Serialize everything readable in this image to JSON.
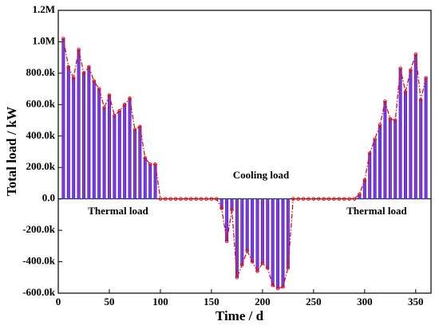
{
  "chart_data": {
    "type": "bar_line",
    "x_label": "Time / d",
    "y_label": "Total load / kW",
    "annotations": [
      "Cooling load",
      "Thermal load",
      "Thermal load"
    ],
    "x": [
      5,
      10,
      15,
      20,
      25,
      30,
      35,
      40,
      45,
      50,
      55,
      60,
      65,
      70,
      75,
      80,
      85,
      90,
      95,
      100,
      105,
      110,
      115,
      120,
      125,
      130,
      135,
      140,
      145,
      150,
      155,
      160,
      165,
      170,
      175,
      180,
      185,
      190,
      195,
      200,
      205,
      210,
      215,
      220,
      225,
      230,
      235,
      240,
      245,
      250,
      255,
      260,
      265,
      270,
      275,
      280,
      285,
      290,
      295,
      300,
      305,
      310,
      315,
      320,
      325,
      330,
      335,
      340,
      345,
      350,
      355,
      360
    ],
    "values": [
      1020000,
      840000,
      770000,
      950000,
      800000,
      840000,
      750000,
      700000,
      580000,
      660000,
      530000,
      560000,
      600000,
      640000,
      440000,
      460000,
      260000,
      220000,
      220000,
      0,
      0,
      0,
      0,
      0,
      0,
      0,
      0,
      0,
      0,
      0,
      0,
      -60000,
      -270000,
      -70000,
      -500000,
      -420000,
      -330000,
      -400000,
      -460000,
      -410000,
      -440000,
      -550000,
      -570000,
      -560000,
      -440000,
      0,
      0,
      0,
      0,
      0,
      0,
      0,
      0,
      0,
      0,
      0,
      0,
      0,
      30000,
      120000,
      290000,
      380000,
      470000,
      620000,
      510000,
      500000,
      830000,
      680000,
      820000,
      920000,
      630000,
      770000
    ],
    "bar_color": "#9b30d0",
    "bar_edge": "#2030e0",
    "line_color": "#e01010",
    "xlim": [
      0,
      365
    ],
    "ylim": [
      -600000,
      1200000
    ],
    "xticks": [
      0,
      50,
      100,
      150,
      200,
      250,
      300,
      350
    ],
    "yticks": [
      {
        "value": -600000,
        "label": "-600.0k"
      },
      {
        "value": -400000,
        "label": "-400.0k"
      },
      {
        "value": -200000,
        "label": "-200.0k"
      },
      {
        "value": 0,
        "label": "0.0"
      },
      {
        "value": 200000,
        "label": "200.0k"
      },
      {
        "value": 400000,
        "label": "400.0k"
      },
      {
        "value": 600000,
        "label": "600.0k"
      },
      {
        "value": 800000,
        "label": "800.0k"
      },
      {
        "value": 1000000,
        "label": "1.0M"
      },
      {
        "value": 1200000,
        "label": "1.2M"
      }
    ]
  }
}
